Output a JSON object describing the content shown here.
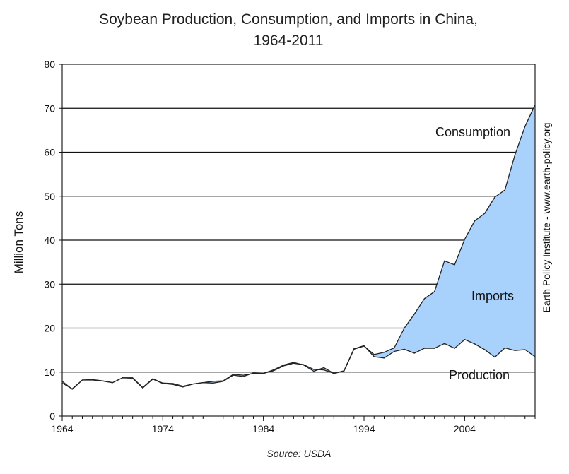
{
  "chart_data": {
    "type": "area",
    "title_line1": "Soybean Production, Consumption, and Imports in China,",
    "title_line2": "1964-2011",
    "ylabel": "Million Tons",
    "xlabel": "",
    "ylim": [
      0,
      80
    ],
    "xlim": [
      1964,
      2011
    ],
    "yticks": [
      "0",
      "10",
      "20",
      "30",
      "40",
      "50",
      "60",
      "70",
      "80"
    ],
    "xticks": [
      "1964",
      "1974",
      "1984",
      "1994",
      "2004"
    ],
    "grid": "horizontal",
    "fill_color": "#a8d1fb",
    "line_color": "#222222",
    "annotations": {
      "consumption": "Consumption",
      "imports": "Imports",
      "production": "Production"
    },
    "side_note": "Earth Policy Institute - www.earth-policy.org",
    "source": "Source: USDA",
    "series": [
      {
        "name": "Consumption",
        "x": [
          1964,
          1965,
          1966,
          1967,
          1968,
          1969,
          1970,
          1971,
          1972,
          1973,
          1974,
          1975,
          1976,
          1977,
          1978,
          1979,
          1980,
          1981,
          1982,
          1983,
          1984,
          1985,
          1986,
          1987,
          1988,
          1989,
          1990,
          1991,
          1992,
          1993,
          1994,
          1995,
          1996,
          1997,
          1998,
          1999,
          2000,
          2001,
          2002,
          2003,
          2004,
          2005,
          2006,
          2007,
          2008,
          2009,
          2010,
          2011
        ],
        "values": [
          7.5,
          6.2,
          8.2,
          8.2,
          8.0,
          7.6,
          8.7,
          8.7,
          6.5,
          8.5,
          7.5,
          7.4,
          6.8,
          7.3,
          7.6,
          7.9,
          8.0,
          9.5,
          9.3,
          9.7,
          9.7,
          10.3,
          11.4,
          12.0,
          11.7,
          10.6,
          10.5,
          9.7,
          10.2,
          15.2,
          15.9,
          14.0,
          14.5,
          15.5,
          20.0,
          23.2,
          26.7,
          28.3,
          35.3,
          34.4,
          40.2,
          44.4,
          46.1,
          49.8,
          51.4,
          59.4,
          65.9,
          70.8
        ]
      },
      {
        "name": "Production",
        "x": [
          1964,
          1965,
          1966,
          1967,
          1968,
          1969,
          1970,
          1971,
          1972,
          1973,
          1974,
          1975,
          1976,
          1977,
          1978,
          1979,
          1980,
          1981,
          1982,
          1983,
          1984,
          1985,
          1986,
          1987,
          1988,
          1989,
          1990,
          1991,
          1992,
          1993,
          1994,
          1995,
          1996,
          1997,
          1998,
          1999,
          2000,
          2001,
          2002,
          2003,
          2004,
          2005,
          2006,
          2007,
          2008,
          2009,
          2010,
          2011
        ],
        "values": [
          7.9,
          6.1,
          8.2,
          8.3,
          8.0,
          7.6,
          8.7,
          8.6,
          6.4,
          8.4,
          7.4,
          7.2,
          6.6,
          7.3,
          7.6,
          7.5,
          7.9,
          9.3,
          9.0,
          9.8,
          9.7,
          10.5,
          11.6,
          12.2,
          11.6,
          10.2,
          11.0,
          9.7,
          10.3,
          15.3,
          16.0,
          13.5,
          13.2,
          14.7,
          15.2,
          14.3,
          15.4,
          15.4,
          16.5,
          15.4,
          17.4,
          16.4,
          15.1,
          13.4,
          15.5,
          14.9,
          15.1,
          13.5
        ]
      }
    ]
  }
}
